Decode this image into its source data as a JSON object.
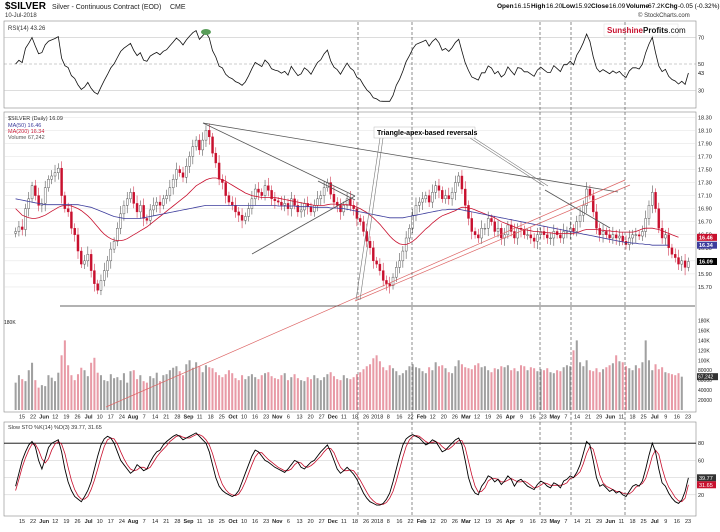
{
  "header": {
    "symbol": "$SILVER",
    "description": "Silver - Continuous Contract (EOD)",
    "exchange": "CME",
    "date": "10-Jul-2018",
    "open_label": "Open",
    "open": "16.15",
    "high_label": "High",
    "high": "16.20",
    "low_label": "Low",
    "low": "15.92",
    "close_label": "Close",
    "close": "16.09",
    "volume_label": "Volume",
    "volume": "67.2K",
    "chg_label": "Chg",
    "chg": "-0.05 (-0.32%)",
    "watermark": "© StockCharts.com"
  },
  "logo": {
    "part1": "Sunshine",
    "part2": "Profits",
    "part3": ".com"
  },
  "colors": {
    "up": "#3a3a3a",
    "down": "#c8102e",
    "ma50": "#c8102e",
    "ma200": "#3c3c9c",
    "volume_up": "#a0a0a0",
    "volume_down": "#e89aa6",
    "grid": "#d8d8d8",
    "stoch_k": "#000000",
    "stoch_d": "#c8102e"
  },
  "chart_data": [
    {
      "type": "line",
      "panel": "RSI",
      "legend": "RSI(14) 43.26",
      "ylim": [
        20,
        80
      ],
      "y_ticks": [
        30,
        50,
        70
      ],
      "last_value": 43.26
    },
    {
      "type": "candlestick",
      "panel": "Price",
      "legend": [
        "$SILVER (Daily) 16.09",
        "MA(50) 16.46",
        "MA(200) 16.34",
        "Volume 67,242"
      ],
      "ylim": [
        15.5,
        18.35
      ],
      "y_ticks": [
        "18.30",
        "18.10",
        "17.90",
        "17.70",
        "17.50",
        "17.30",
        "17.10",
        "16.90",
        "16.70",
        "16.50",
        "16.30",
        "16.10",
        "15.90",
        "15.70"
      ],
      "last_labels": [
        "16.46",
        "16.34",
        "16.09"
      ],
      "volume_ticks": [
        "180K",
        "160K",
        "140K",
        "120K",
        "100K",
        "80000",
        "60000",
        "40000",
        "20000"
      ],
      "volume_last_label": "67,242",
      "annotation": "Triangle-apex-based reversals",
      "x_labels": [
        "15",
        "22",
        "Jun",
        "12",
        "19",
        "26",
        "Jul",
        "10",
        "17",
        "24",
        "Aug",
        "7",
        "14",
        "21",
        "28",
        "Sep",
        "11",
        "18",
        "25",
        "Oct",
        "10",
        "16",
        "23",
        "Nov",
        "6",
        "13",
        "20",
        "27",
        "Dec",
        "11",
        "18",
        "26",
        "2018",
        "8",
        "16",
        "22",
        "Feb",
        "12",
        "20",
        "26",
        "Mar",
        "12",
        "19",
        "26",
        "Apr",
        "9",
        "16",
        "23",
        "May",
        "7",
        "14",
        "21",
        "29",
        "Jun",
        "11",
        "18",
        "25",
        "Jul",
        "9",
        "16",
        "23"
      ],
      "closes": [
        16.55,
        16.62,
        16.58,
        16.9,
        17.05,
        17.25,
        17.1,
        16.95,
        16.98,
        17.22,
        17.35,
        17.4,
        17.45,
        17.52,
        17.1,
        16.9,
        16.85,
        16.6,
        16.5,
        16.25,
        16.05,
        16.1,
        16.2,
        15.95,
        15.75,
        15.65,
        15.8,
        15.95,
        16.1,
        16.28,
        16.4,
        16.6,
        16.82,
        16.95,
        17.05,
        17.15,
        16.98,
        16.85,
        16.95,
        16.75,
        16.72,
        16.88,
        16.95,
        17.0,
        16.95,
        17.05,
        17.1,
        17.22,
        17.35,
        17.5,
        17.45,
        17.38,
        17.55,
        17.7,
        17.85,
        17.95,
        17.8,
        17.95,
        18.1,
        18.0,
        17.75,
        17.6,
        17.35,
        17.3,
        17.1,
        17.0,
        16.95,
        16.85,
        16.8,
        16.72,
        16.78,
        16.9,
        17.05,
        17.2,
        17.15,
        17.1,
        17.25,
        17.18,
        17.05,
        17.02,
        17.0,
        16.95,
        16.98,
        16.9,
        17.05,
        16.95,
        16.85,
        16.88,
        16.98,
        16.93,
        16.85,
        16.95,
        17.05,
        17.1,
        17.22,
        17.3,
        17.12,
        17.0,
        16.95,
        16.85,
        16.95,
        17.05,
        16.95,
        16.9,
        16.75,
        16.7,
        16.55,
        16.4,
        16.3,
        16.1,
        16.05,
        15.95,
        15.8,
        15.75,
        15.72,
        15.85,
        16.0,
        16.1,
        16.25,
        16.45,
        16.6,
        16.8,
        16.95,
        17.0,
        17.05,
        17.1,
        17.0,
        17.15,
        17.25,
        17.18,
        17.05,
        17.1,
        17.05,
        17.15,
        17.3,
        17.4,
        17.2,
        16.95,
        16.75,
        16.55,
        16.5,
        16.45,
        16.6,
        16.6,
        16.75,
        16.7,
        16.55,
        16.6,
        16.45,
        16.5,
        16.65,
        16.55,
        16.45,
        16.6,
        16.58,
        16.5,
        16.5,
        16.45,
        16.4,
        16.5,
        16.55,
        16.5,
        16.45,
        16.45,
        16.55,
        16.5,
        16.45,
        16.55,
        16.55,
        16.6,
        16.55,
        16.7,
        16.8,
        16.95,
        17.2,
        17.1,
        16.85,
        16.6,
        16.5,
        16.55,
        16.5,
        16.45,
        16.5,
        16.45,
        16.48,
        16.4,
        16.35,
        16.45,
        16.5,
        16.5,
        16.48,
        16.55,
        16.75,
        16.95,
        17.15,
        16.9,
        16.6,
        16.45,
        16.5,
        16.3,
        16.2,
        16.15,
        16.05,
        16.1,
        16.0,
        16.09
      ],
      "ma50": [
        16.9,
        16.85,
        16.8,
        16.78,
        16.76,
        16.75,
        16.75,
        16.76,
        16.78,
        16.8,
        16.83,
        16.86,
        16.89,
        16.92,
        16.94,
        16.95,
        16.95,
        16.94,
        16.92,
        16.9,
        16.87,
        16.83,
        16.79,
        16.74,
        16.68,
        16.62,
        16.56,
        16.51,
        16.47,
        16.44,
        16.42,
        16.41,
        16.41,
        16.42,
        16.44,
        16.47,
        16.5,
        16.53,
        16.56,
        16.59,
        16.62,
        16.66,
        16.7,
        16.74,
        16.78,
        16.82,
        16.86,
        16.9,
        16.94,
        16.98,
        17.02,
        17.06,
        17.1,
        17.15,
        17.2,
        17.25,
        17.28,
        17.31,
        17.34,
        17.36,
        17.37,
        17.37,
        17.36,
        17.34,
        17.32,
        17.29,
        17.26,
        17.23,
        17.2,
        17.17,
        17.14,
        17.12,
        17.1,
        17.09,
        17.08,
        17.07,
        17.07,
        17.07,
        17.07,
        17.07,
        17.06,
        17.05,
        17.04,
        17.03,
        17.02,
        17.01,
        17.0,
        16.99,
        16.98,
        16.97,
        16.96,
        16.95,
        16.95,
        16.95,
        16.95,
        16.96,
        16.97,
        16.97,
        16.97,
        16.96,
        16.96,
        16.96,
        16.95,
        16.94,
        16.92,
        16.9,
        16.87,
        16.84,
        16.8,
        16.76,
        16.71,
        16.66,
        16.6,
        16.54,
        16.48,
        16.43,
        16.39,
        16.36,
        16.35,
        16.35,
        16.37,
        16.4,
        16.44,
        16.49,
        16.54,
        16.59,
        16.63,
        16.68,
        16.72,
        16.76,
        16.79,
        16.81,
        16.83,
        16.85,
        16.87,
        16.9,
        16.92,
        16.92,
        16.91,
        16.9,
        16.88,
        16.86,
        16.84,
        16.82,
        16.8,
        16.78,
        16.76,
        16.73,
        16.7,
        16.68,
        16.66,
        16.64,
        16.62,
        16.6,
        16.59,
        16.58,
        16.57,
        16.56,
        16.55,
        16.55,
        16.54,
        16.54,
        16.53,
        16.53,
        16.52,
        16.52,
        16.52,
        16.52,
        16.52,
        16.52,
        16.52,
        16.53,
        16.55,
        16.57,
        16.58,
        16.58,
        16.58,
        16.58,
        16.57,
        16.57,
        16.56,
        16.56,
        16.55,
        16.55,
        16.54,
        16.54,
        16.54,
        16.54,
        16.54,
        16.55,
        16.57,
        16.59,
        16.6,
        16.6,
        16.6,
        16.59,
        16.58,
        16.56,
        16.54,
        16.52,
        16.5,
        16.48,
        16.46
      ],
      "ma200": [
        17.05,
        17.04,
        17.03,
        17.02,
        17.01,
        17.0,
        16.99,
        16.98,
        16.97,
        16.96,
        16.96,
        16.96,
        16.96,
        16.96,
        16.96,
        16.96,
        16.96,
        16.96,
        16.96,
        16.96,
        16.95,
        16.94,
        16.93,
        16.92,
        16.9,
        16.88,
        16.86,
        16.84,
        16.82,
        16.8,
        16.78,
        16.77,
        16.76,
        16.75,
        16.75,
        16.75,
        16.75,
        16.75,
        16.75,
        16.76,
        16.77,
        16.78,
        16.79,
        16.8,
        16.81,
        16.82,
        16.83,
        16.84,
        16.85,
        16.86,
        16.87,
        16.88,
        16.89,
        16.9,
        16.91,
        16.92,
        16.93,
        16.94,
        16.95,
        16.95,
        16.95,
        16.95,
        16.95,
        16.95,
        16.95,
        16.95,
        16.95,
        16.95,
        16.95,
        16.95,
        16.95,
        16.95,
        16.95,
        16.95,
        16.95,
        16.95,
        16.95,
        16.95,
        16.95,
        16.95,
        16.94,
        16.94,
        16.94,
        16.94,
        16.94,
        16.94,
        16.93,
        16.93,
        16.93,
        16.93,
        16.93,
        16.92,
        16.92,
        16.92,
        16.92,
        16.92,
        16.91,
        16.91,
        16.91,
        16.9,
        16.9,
        16.89,
        16.88,
        16.87,
        16.86,
        16.85,
        16.84,
        16.83,
        16.82,
        16.81,
        16.8,
        16.79,
        16.78,
        16.77,
        16.76,
        16.76,
        16.76,
        16.76,
        16.76,
        16.77,
        16.78,
        16.79,
        16.8,
        16.81,
        16.82,
        16.83,
        16.84,
        16.85,
        16.86,
        16.87,
        16.88,
        16.88,
        16.89,
        16.89,
        16.89,
        16.89,
        16.88,
        16.87,
        16.86,
        16.85,
        16.84,
        16.83,
        16.82,
        16.81,
        16.8,
        16.79,
        16.78,
        16.77,
        16.76,
        16.75,
        16.74,
        16.73,
        16.72,
        16.71,
        16.7,
        16.69,
        16.68,
        16.67,
        16.66,
        16.65,
        16.64,
        16.63,
        16.62,
        16.61,
        16.6,
        16.59,
        16.58,
        16.57,
        16.56,
        16.55,
        16.54,
        16.53,
        16.52,
        16.51,
        16.5,
        16.49,
        16.48,
        16.47,
        16.46,
        16.45,
        16.44,
        16.43,
        16.42,
        16.41,
        16.4,
        16.39,
        16.38,
        16.38,
        16.37,
        16.37,
        16.36,
        16.36,
        16.35,
        16.35,
        16.34,
        16.34,
        16.34,
        16.34,
        16.34,
        16.34
      ],
      "volume": [
        55,
        70,
        62,
        58,
        80,
        95,
        60,
        45,
        50,
        48,
        70,
        65,
        58,
        75,
        110,
        140,
        90,
        70,
        60,
        72,
        85,
        80,
        68,
        95,
        105,
        75,
        70,
        60,
        58,
        72,
        64,
        66,
        60,
        74,
        55,
        78,
        80,
        62,
        70,
        58,
        55,
        68,
        64,
        75,
        58,
        70,
        72,
        80,
        85,
        88,
        78,
        70,
        92,
        100,
        85,
        96,
        88,
        76,
        90,
        86,
        84,
        76,
        70,
        66,
        72,
        80,
        74,
        64,
        60,
        70,
        62,
        68,
        72,
        66,
        62,
        70,
        74,
        76,
        68,
        64,
        62,
        70,
        74,
        60,
        66,
        72,
        64,
        60,
        58,
        66,
        62,
        70,
        64,
        60,
        66,
        72,
        76,
        68,
        62,
        60,
        70,
        64,
        62,
        66,
        72,
        76,
        82,
        88,
        92,
        104,
        110,
        98,
        86,
        80,
        90,
        84,
        78,
        70,
        74,
        80,
        88,
        92,
        86,
        84,
        78,
        74,
        86,
        80,
        96,
        88,
        90,
        84,
        76,
        74,
        88,
        100,
        92,
        86,
        84,
        82,
        90,
        94,
        86,
        88,
        80,
        76,
        84,
        82,
        88,
        86,
        90,
        80,
        84,
        78,
        90,
        88,
        80,
        86,
        84,
        78,
        82,
        80,
        84,
        76,
        74,
        80,
        78,
        86,
        90,
        88,
        120,
        140,
        96,
        88,
        100,
        80,
        78,
        84,
        76,
        82,
        86,
        90,
        94,
        110,
        98,
        96,
        88,
        84,
        80,
        90,
        84,
        96,
        140,
        100,
        80,
        92,
        82,
        86,
        76,
        74,
        72,
        70,
        74,
        67
      ],
      "volume_unit": "K"
    },
    {
      "type": "line",
      "panel": "Stochastic",
      "legend": "Slow STO %K(14) %D(3) 39.77, 31.65",
      "ylim": [
        0,
        100
      ],
      "y_ticks": [
        20,
        40,
        60,
        80
      ],
      "last_labels": [
        "39.77",
        "31.65"
      ],
      "k": [
        30,
        45,
        60,
        70,
        78,
        82,
        76,
        60,
        50,
        62,
        75,
        80,
        82,
        84,
        70,
        50,
        35,
        25,
        18,
        15,
        12,
        18,
        25,
        35,
        50,
        65,
        78,
        85,
        88,
        86,
        80,
        70,
        60,
        55,
        50,
        45,
        48,
        55,
        52,
        48,
        50,
        58,
        65,
        70,
        72,
        78,
        82,
        85,
        88,
        90,
        88,
        84,
        86,
        88,
        90,
        92,
        88,
        84,
        80,
        70,
        55,
        40,
        30,
        25,
        22,
        20,
        18,
        20,
        25,
        35,
        45,
        55,
        65,
        72,
        70,
        65,
        60,
        58,
        55,
        52,
        50,
        48,
        46,
        50,
        55,
        60,
        58,
        52,
        50,
        54,
        58,
        60,
        65,
        70,
        74,
        78,
        70,
        60,
        50,
        45,
        48,
        52,
        48,
        44,
        38,
        30,
        22,
        16,
        12,
        10,
        8,
        8,
        10,
        15,
        22,
        35,
        50,
        65,
        78,
        85,
        88,
        90,
        88,
        86,
        82,
        78,
        80,
        84,
        82,
        76,
        70,
        72,
        76,
        80,
        84,
        86,
        78,
        60,
        40,
        28,
        22,
        20,
        30,
        35,
        42,
        40,
        35,
        38,
        32,
        36,
        42,
        38,
        30,
        36,
        38,
        34,
        30,
        28,
        26,
        32,
        36,
        34,
        30,
        28,
        34,
        32,
        28,
        36,
        38,
        42,
        40,
        46,
        55,
        68,
        82,
        78,
        60,
        40,
        30,
        32,
        28,
        24,
        26,
        22,
        24,
        20,
        18,
        24,
        30,
        32,
        30,
        36,
        50,
        66,
        80,
        70,
        50,
        34,
        30,
        22,
        16,
        12,
        10,
        14,
        24,
        39.77
      ],
      "d": [
        25,
        38,
        52,
        63,
        72,
        79,
        79,
        72,
        62,
        57,
        62,
        72,
        79,
        82,
        79,
        68,
        52,
        37,
        26,
        19,
        15,
        15,
        18,
        26,
        37,
        50,
        64,
        76,
        84,
        86,
        85,
        79,
        70,
        62,
        55,
        50,
        48,
        49,
        52,
        52,
        50,
        52,
        58,
        64,
        69,
        73,
        77,
        82,
        85,
        88,
        89,
        87,
        86,
        86,
        88,
        90,
        90,
        88,
        84,
        78,
        68,
        55,
        42,
        32,
        26,
        22,
        20,
        19,
        21,
        27,
        35,
        45,
        55,
        64,
        69,
        69,
        65,
        61,
        58,
        55,
        52,
        50,
        48,
        48,
        50,
        55,
        58,
        57,
        53,
        52,
        54,
        57,
        61,
        65,
        70,
        74,
        74,
        69,
        60,
        52,
        48,
        48,
        49,
        48,
        43,
        37,
        30,
        23,
        17,
        13,
        10,
        9,
        9,
        11,
        16,
        24,
        36,
        50,
        64,
        76,
        84,
        88,
        89,
        88,
        85,
        82,
        80,
        81,
        82,
        80,
        76,
        73,
        73,
        76,
        80,
        83,
        83,
        75,
        59,
        43,
        30,
        23,
        24,
        28,
        36,
        39,
        39,
        38,
        35,
        35,
        37,
        39,
        37,
        35,
        35,
        36,
        34,
        31,
        28,
        29,
        31,
        34,
        33,
        31,
        31,
        31,
        31,
        32,
        34,
        39,
        40,
        43,
        47,
        56,
        68,
        76,
        73,
        59,
        43,
        34,
        30,
        28,
        26,
        24,
        24,
        22,
        21,
        21,
        24,
        29,
        31,
        33,
        39,
        51,
        65,
        72,
        67,
        51,
        38,
        29,
        23,
        17,
        13,
        12,
        16,
        31.65
      ]
    }
  ],
  "credit": "© StockCharts.com"
}
